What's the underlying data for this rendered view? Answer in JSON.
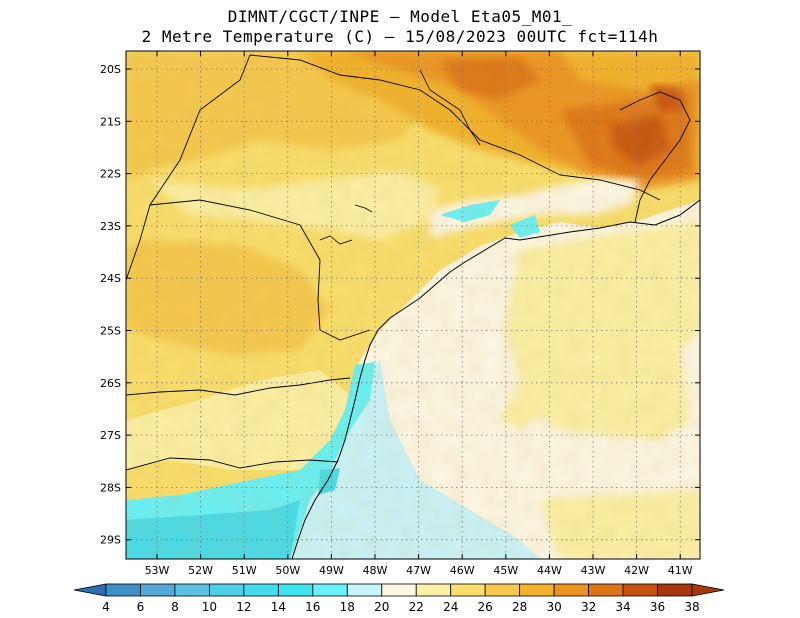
{
  "title": {
    "line1": "DIMNT/CGCT/INPE –  Model Eta05_M01_",
    "line2": "2 Metre Temperature (C) –  15/08/2023 00UTC fct=114h"
  },
  "lat_labels": [
    "20S",
    "21S",
    "22S",
    "23S",
    "24S",
    "25S",
    "26S",
    "27S",
    "28S",
    "29S"
  ],
  "lon_labels": [
    "53W",
    "52W",
    "51W",
    "50W",
    "49W",
    "48W",
    "47W",
    "46W",
    "45W",
    "44W",
    "43W",
    "42W",
    "41W"
  ],
  "colorbar": {
    "labels": [
      "4",
      "6",
      "8",
      "10",
      "12",
      "14",
      "16",
      "18",
      "20",
      "22",
      "24",
      "26",
      "28",
      "30",
      "32",
      "34",
      "36",
      "38"
    ],
    "colors": [
      "#2b6fb0",
      "#3f8fc8",
      "#55a8d8",
      "#5cc0e0",
      "#4dd0e8",
      "#44dcec",
      "#3ee4f0",
      "#66f2f8",
      "#c8f4fc",
      "#fdf8e6",
      "#fcf0a4",
      "#f9df6c",
      "#f5c94e",
      "#f1b22c",
      "#eb9420",
      "#dd7418",
      "#c65410",
      "#a8380c"
    ]
  }
}
